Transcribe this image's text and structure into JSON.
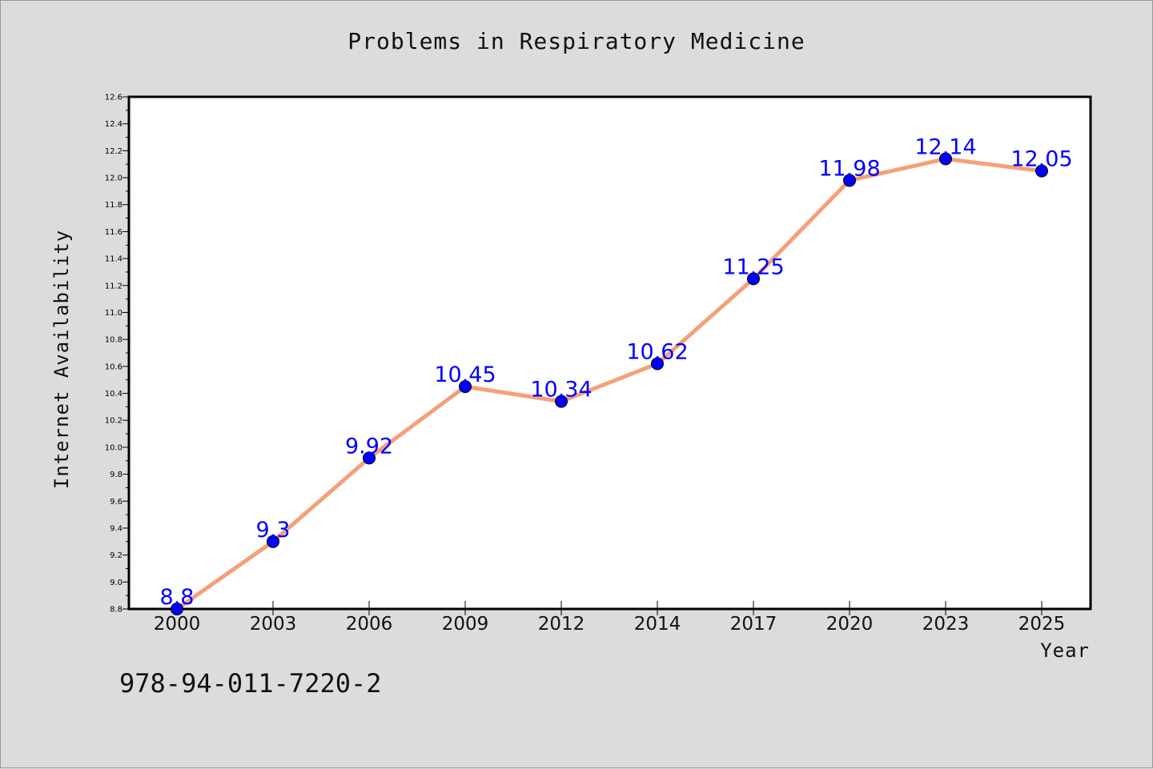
{
  "chart_data": {
    "type": "line",
    "title": "Problems in Respiratory Medicine",
    "xlabel": "Year",
    "ylabel": "Internet Availability",
    "categories": [
      "2000",
      "2003",
      "2006",
      "2009",
      "2012",
      "2014",
      "2017",
      "2020",
      "2023",
      "2025"
    ],
    "series": [
      {
        "values": [
          8.8,
          9.3,
          9.92,
          10.45,
          10.34,
          10.62,
          11.25,
          11.98,
          12.14,
          12.05
        ],
        "value_labels": [
          "8.8",
          "9.3",
          "9.92",
          "10.45",
          "10.34",
          "10.62",
          "11.25",
          "11.98",
          "12.14",
          "12.05"
        ],
        "line_color": "#f4a07a",
        "marker_color": "#0000ff"
      }
    ],
    "ylim": [
      8.8,
      12.6
    ],
    "y_ticks": [
      "8.8",
      "9.0",
      "9.2",
      "9.4",
      "9.6",
      "9.8",
      "10.0",
      "10.2",
      "10.4",
      "10.6",
      "10.8",
      "11.0",
      "11.2",
      "11.4",
      "11.6",
      "11.8",
      "12.0",
      "12.2",
      "12.4",
      "12.6"
    ],
    "grid": false,
    "legend": "none"
  },
  "footer": {
    "isbn": "978-94-011-7220-2"
  },
  "colors": {
    "background": "#dcdcdc",
    "plot_background": "#ffffff",
    "line": "#f4a07a",
    "marker": "#0000ff",
    "data_label": "#0000ff"
  }
}
